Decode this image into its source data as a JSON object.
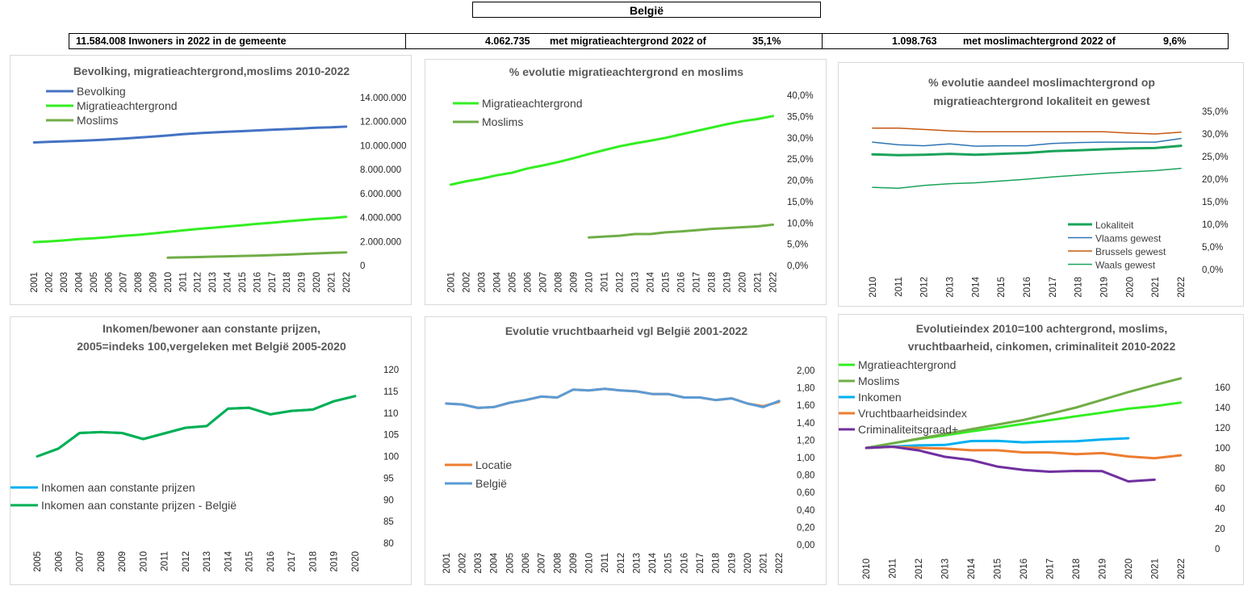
{
  "header": {
    "title": "België",
    "population": "11.584.008 Inwoners in 2022 in de gemeente",
    "migration_value": "4.062.735",
    "migration_label": "met migratieachtergrond 2022 of",
    "migration_pct": "35,1%",
    "muslim_value": "1.098.763",
    "muslim_label": "met moslimachtergrond 2022 of",
    "muslim_pct": "9,6%"
  },
  "colors": {
    "blue": "#4472c4",
    "bright_green": "#33ee22",
    "olive_green": "#70ad47",
    "dark_green": "#00b050",
    "orange": "#c55a11",
    "light_orange": "#ed7d31",
    "cyan": "#00b0f0",
    "steel_blue": "#5b9bd5",
    "purple": "#7030a0",
    "sea_green": "#1aa35a"
  },
  "chart_data": [
    {
      "type": "line",
      "title_lines": [
        "Bevolking, migratieachtergrond,moslims  2010-2022"
      ],
      "x": [
        "2001",
        "2002",
        "2003",
        "2004",
        "2005",
        "2006",
        "2007",
        "2008",
        "2009",
        "2010",
        "2011",
        "2012",
        "2013",
        "2014",
        "2015",
        "2016",
        "2017",
        "2018",
        "2019",
        "2020",
        "2021",
        "2022"
      ],
      "y_ticks": [
        "0",
        "2.000.000",
        "4.000.000",
        "6.000.000",
        "8.000.000",
        "10.000.000",
        "12.000.000",
        "14.000.000"
      ],
      "ylim": [
        0,
        14000000
      ],
      "axis_side": "right",
      "legend_position": "top-left",
      "series": [
        {
          "name": "Bevolking",
          "color": "#4472c4",
          "width": 3,
          "values": [
            10263000,
            10310000,
            10356000,
            10396000,
            10446000,
            10511000,
            10585000,
            10667000,
            10753000,
            10840000,
            10951000,
            11035000,
            11099000,
            11150000,
            11209000,
            11268000,
            11322000,
            11376000,
            11431000,
            11493000,
            11522000,
            11584000
          ]
        },
        {
          "name": "Migratieachtergrond",
          "color": "#33ee22",
          "width": 3,
          "values": [
            1950000,
            2010000,
            2090000,
            2200000,
            2270000,
            2360000,
            2470000,
            2560000,
            2670000,
            2800000,
            2930000,
            3050000,
            3150000,
            3260000,
            3360000,
            3470000,
            3570000,
            3680000,
            3780000,
            3890000,
            3960000,
            4062735
          ]
        },
        {
          "name": "Moslims",
          "color": "#70ad47",
          "width": 3,
          "values": [
            null,
            null,
            null,
            null,
            null,
            null,
            null,
            null,
            null,
            650000,
            680000,
            710000,
            740000,
            770000,
            800000,
            830000,
            870000,
            910000,
            960000,
            1010000,
            1055000,
            1098763
          ]
        }
      ]
    },
    {
      "type": "line",
      "title_lines": [
        "% evolutie migratieachtergrond  en moslims"
      ],
      "x": [
        "2001",
        "2002",
        "2003",
        "2004",
        "2005",
        "2006",
        "2007",
        "2008",
        "2009",
        "2010",
        "2011",
        "2012",
        "2013",
        "2014",
        "2015",
        "2016",
        "2017",
        "2018",
        "2019",
        "2020",
        "2021",
        "2022"
      ],
      "y_ticks": [
        "0,0%",
        "5,0%",
        "10,0%",
        "15,0%",
        "20,0%",
        "25,0%",
        "30,0%",
        "35,0%",
        "40,0%"
      ],
      "ylim": [
        0,
        40
      ],
      "axis_side": "right",
      "legend_position": "top-left",
      "series": [
        {
          "name": "Migratieachtergrond",
          "color": "#33ee22",
          "width": 3,
          "values": [
            19.0,
            19.8,
            20.4,
            21.2,
            21.8,
            22.8,
            23.5,
            24.3,
            25.2,
            26.2,
            27.1,
            28.0,
            28.7,
            29.3,
            30.0,
            30.8,
            31.6,
            32.4,
            33.2,
            33.9,
            34.4,
            35.1
          ]
        },
        {
          "name": "Moslims",
          "color": "#70ad47",
          "width": 3,
          "values": [
            null,
            null,
            null,
            null,
            null,
            null,
            null,
            null,
            null,
            6.6,
            6.8,
            7.0,
            7.4,
            7.4,
            7.8,
            8.0,
            8.3,
            8.6,
            8.8,
            9.0,
            9.2,
            9.6
          ]
        }
      ]
    },
    {
      "type": "line",
      "title_lines": [
        "% evolutie aandeel moslimachtergrond op",
        "migratieachtergrond lokaliteit en gewest"
      ],
      "x": [
        "2010",
        "2011",
        "2012",
        "2013",
        "2014",
        "2015",
        "2016",
        "2017",
        "2018",
        "2019",
        "2020",
        "2021",
        "2022"
      ],
      "y_ticks": [
        "0,0%",
        "5,0%",
        "10,0%",
        "15,0%",
        "20,0%",
        "25,0%",
        "30,0%",
        "35,0%"
      ],
      "ylim": [
        0,
        35
      ],
      "axis_side": "right",
      "legend_position": "bottom-right",
      "series": [
        {
          "name": "Lokaliteit",
          "color": "#1aa35a",
          "width": 3,
          "values": [
            25.5,
            25.3,
            25.4,
            25.6,
            25.4,
            25.6,
            25.8,
            26.2,
            26.4,
            26.6,
            26.8,
            26.9,
            27.4
          ]
        },
        {
          "name": "Vlaams gewest",
          "color": "#2e75b6",
          "width": 1.5,
          "values": [
            28.2,
            27.6,
            27.4,
            27.8,
            27.3,
            27.4,
            27.4,
            27.9,
            28.1,
            28.2,
            28.2,
            28.2,
            29.0
          ]
        },
        {
          "name": "Brussels gewest",
          "color": "#c55a11",
          "width": 1.5,
          "values": [
            31.3,
            31.3,
            31.0,
            30.7,
            30.5,
            30.5,
            30.5,
            30.5,
            30.5,
            30.5,
            30.2,
            30.0,
            30.4
          ]
        },
        {
          "name": "Waals gewest",
          "color": "#1aa35a",
          "width": 1.5,
          "values": [
            18.2,
            18.0,
            18.6,
            19.0,
            19.2,
            19.6,
            20.0,
            20.5,
            20.9,
            21.3,
            21.6,
            21.9,
            22.4
          ]
        }
      ]
    },
    {
      "type": "line",
      "title_lines": [
        "Inkomen/bewoner aan constante prijzen,",
        "2005=indeks 100,vergeleken met België 2005-2020"
      ],
      "x": [
        "2005",
        "2006",
        "2007",
        "2008",
        "2009",
        "2010",
        "2011",
        "2012",
        "2013",
        "2014",
        "2015",
        "2016",
        "2017",
        "2018",
        "2019",
        "2020"
      ],
      "y_ticks": [
        "80",
        "85",
        "90",
        "95",
        "100",
        "105",
        "110",
        "115",
        "120"
      ],
      "ylim": [
        80,
        120
      ],
      "axis_side": "right",
      "legend_position": "bottom-left",
      "series": [
        {
          "name": "Inkomen aan constante prijzen",
          "color": "#00b0f0",
          "width": 3,
          "values": [
            100.0,
            101.8,
            105.4,
            105.6,
            105.4,
            104.0,
            105.3,
            106.6,
            107.0,
            111.0,
            111.2,
            109.7,
            110.5,
            110.8,
            112.7,
            113.9
          ]
        },
        {
          "name": "Inkomen aan constante prijzen - België",
          "color": "#00b050",
          "width": 3,
          "values": [
            100.0,
            101.8,
            105.4,
            105.6,
            105.4,
            104.0,
            105.3,
            106.6,
            107.0,
            111.0,
            111.2,
            109.7,
            110.5,
            110.8,
            112.7,
            113.9
          ]
        }
      ]
    },
    {
      "type": "line",
      "title_lines": [
        "Evolutie vruchtbaarheid vgl België 2001-2022"
      ],
      "x": [
        "2001",
        "2002",
        "2003",
        "2004",
        "2005",
        "2006",
        "2007",
        "2008",
        "2009",
        "2010",
        "2011",
        "2012",
        "2013",
        "2014",
        "2015",
        "2016",
        "2017",
        "2018",
        "2019",
        "2020",
        "2021",
        "2022"
      ],
      "y_ticks": [
        "0,00",
        "0,20",
        "0,40",
        "0,60",
        "0,80",
        "1,00",
        "1,20",
        "1,40",
        "1,60",
        "1,80",
        "2,00"
      ],
      "ylim": [
        0,
        2
      ],
      "axis_side": "right",
      "legend_position": "bottom-left",
      "series": [
        {
          "name": "Locatie",
          "color": "#ed7d31",
          "width": 3,
          "values": [
            1.62,
            1.61,
            1.57,
            1.58,
            1.63,
            1.66,
            1.7,
            1.69,
            1.78,
            1.77,
            1.79,
            1.77,
            1.76,
            1.73,
            1.73,
            1.69,
            1.69,
            1.66,
            1.68,
            1.62,
            1.59,
            1.64
          ]
        },
        {
          "name": "België",
          "color": "#5b9bd5",
          "width": 3,
          "values": [
            1.62,
            1.61,
            1.57,
            1.58,
            1.63,
            1.66,
            1.7,
            1.69,
            1.78,
            1.77,
            1.79,
            1.77,
            1.76,
            1.73,
            1.73,
            1.69,
            1.69,
            1.66,
            1.68,
            1.62,
            1.58,
            1.65
          ]
        }
      ]
    },
    {
      "type": "line",
      "title_lines": [
        "Evolutieindex 2010=100 achtergrond, moslims,",
        "vruchtbaarheid, cinkomen, criminaliteit  2010-2022"
      ],
      "x": [
        "2010",
        "2011",
        "2012",
        "2013",
        "2014",
        "2015",
        "2016",
        "2017",
        "2018",
        "2019",
        "2020",
        "2021",
        "2022"
      ],
      "y_ticks": [
        "0",
        "20",
        "40",
        "60",
        "80",
        "100",
        "120",
        "140",
        "160"
      ],
      "ylim": [
        0,
        160
      ],
      "axis_side": "right",
      "legend_position": "top-left",
      "series": [
        {
          "name": "Mgratieachtergrond",
          "color": "#33ee22",
          "width": 3,
          "values": [
            100,
            104.6,
            108.9,
            112.5,
            116.4,
            120.0,
            123.9,
            127.5,
            131.4,
            135.0,
            138.9,
            141.4,
            145.0
          ]
        },
        {
          "name": "Moslims",
          "color": "#70ad47",
          "width": 3,
          "values": [
            100,
            104.6,
            109.2,
            113.8,
            118.5,
            123.1,
            127.7,
            133.8,
            140.0,
            147.7,
            155.4,
            162.3,
            169.0
          ]
        },
        {
          "name": "Inkomen",
          "color": "#00b0f0",
          "width": 3,
          "values": [
            100,
            101.3,
            102.6,
            103.0,
            106.8,
            107.0,
            105.5,
            106.2,
            106.6,
            108.4,
            109.6,
            null,
            null
          ]
        },
        {
          "name": "Vruchtbaarheidsindex",
          "color": "#ed7d31",
          "width": 3,
          "values": [
            100,
            101.1,
            100.0,
            99.4,
            97.7,
            97.7,
            95.5,
            95.5,
            93.8,
            94.9,
            91.5,
            89.8,
            92.7
          ]
        },
        {
          "name": "Criminaliteitsgraad+",
          "color": "#7030a0",
          "width": 3,
          "values": [
            100,
            101.2,
            97.5,
            91.2,
            88.0,
            81.5,
            78.2,
            76.4,
            77.2,
            77.0,
            66.8,
            68.5,
            null
          ]
        }
      ]
    }
  ]
}
